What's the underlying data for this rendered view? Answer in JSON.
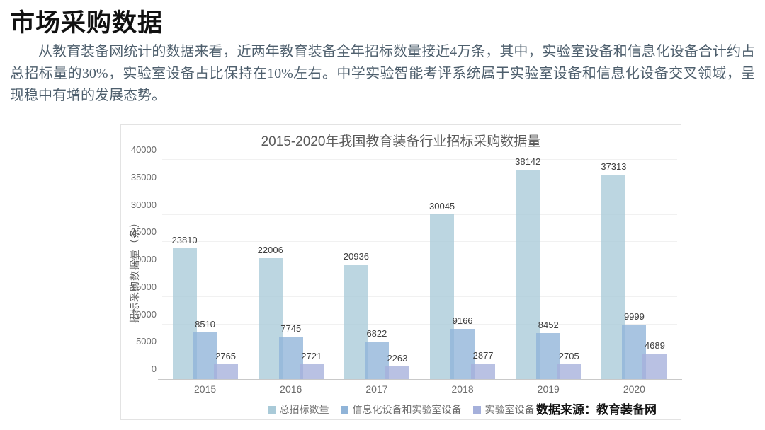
{
  "page": {
    "title": "市场采购数据",
    "paragraph": "从教育装备网统计的数据来看，近两年教育装备全年招标数量接近4万条，其中，实验室设备和信息化设备合计约占总招标量的30%，实验室设备占比保持在10%左右。中学实验智能考评系统属于实验室设备和信息化设备交叉领域，呈现稳中有增的发展态势。"
  },
  "chart": {
    "source_label": "数据来源：教育装备网"
  },
  "chart_data": {
    "type": "bar",
    "title": "2015-2020年我国教育装备行业招标采购数据量",
    "xlabel": "",
    "ylabel": "招标采购数据量（条）",
    "categories": [
      "2015",
      "2016",
      "2017",
      "2018",
      "2019",
      "2020"
    ],
    "series": [
      {
        "name": "总招标数量",
        "color": "#a9cad8",
        "values": [
          23810,
          22006,
          20936,
          30045,
          38142,
          37313
        ]
      },
      {
        "name": "信息化设备和实验室设备",
        "color": "#90b4d8",
        "values": [
          8510,
          7745,
          6822,
          9166,
          8452,
          9999
        ]
      },
      {
        "name": "实验室设备",
        "color": "#a5b0db",
        "values": [
          2765,
          2721,
          2263,
          2877,
          2705,
          4689
        ]
      }
    ],
    "ylim": [
      0,
      40000
    ],
    "ytick_step": 5000,
    "grid": true,
    "legend_position": "bottom",
    "value_labels": true
  }
}
